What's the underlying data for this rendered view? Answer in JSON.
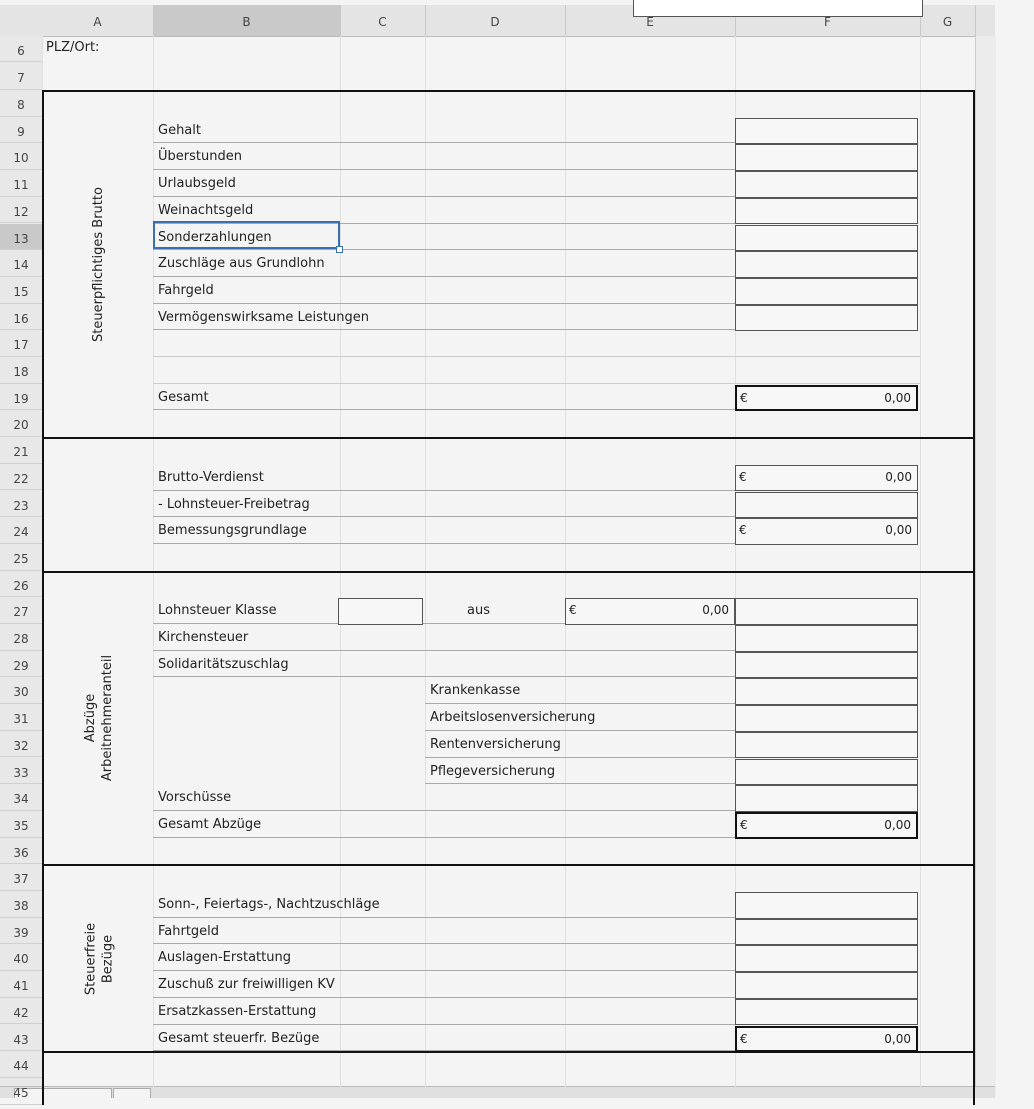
{
  "columns": [
    "A",
    "B",
    "C",
    "D",
    "E",
    "F",
    "G"
  ],
  "selected_column": "B",
  "selected_row": 13,
  "rows": [
    6,
    7,
    8,
    9,
    10,
    11,
    12,
    13,
    14,
    15,
    16,
    17,
    18,
    19,
    20,
    21,
    22,
    23,
    24,
    25,
    26,
    27,
    28,
    29,
    30,
    31,
    32,
    33,
    34,
    35,
    36,
    37,
    38,
    39,
    40,
    41,
    42,
    43,
    44,
    45
  ],
  "plz_label": "PLZ/Ort:",
  "sections": [
    {
      "side_label": [
        "Steuerpflichtiges Brutto"
      ],
      "from": 8,
      "to": 20
    },
    {
      "side_label": [],
      "from": 21,
      "to": 25
    },
    {
      "side_label": [
        "Abzüge",
        "Arbeitnehmeranteil"
      ],
      "from": 26,
      "to": 36
    },
    {
      "side_label": [
        "Steuerfreie",
        "Bezüge"
      ],
      "from": 37,
      "to": 43
    },
    {
      "side_label": [],
      "from": 44,
      "to": 45
    }
  ],
  "items": [
    {
      "row": 9,
      "col": "B",
      "label": "Gehalt",
      "box": true
    },
    {
      "row": 10,
      "col": "B",
      "label": "Überstunden",
      "box": true
    },
    {
      "row": 11,
      "col": "B",
      "label": "Urlaubsgeld",
      "box": true
    },
    {
      "row": 12,
      "col": "B",
      "label": "Weinachtsgeld",
      "box": true
    },
    {
      "row": 13,
      "col": "B",
      "label": "Sonderzahlungen",
      "box": true
    },
    {
      "row": 14,
      "col": "B",
      "label": "Zuschläge aus Grundlohn",
      "box": true
    },
    {
      "row": 15,
      "col": "B",
      "label": "Fahrgeld",
      "box": true
    },
    {
      "row": 16,
      "col": "B",
      "label": "Vermögenswirksame Leistungen",
      "box": true
    },
    {
      "row": 17,
      "col": "B",
      "label": "",
      "box": false
    },
    {
      "row": 18,
      "col": "B",
      "label": "",
      "box": false
    },
    {
      "row": 19,
      "col": "B",
      "label": "Gesamt",
      "box": true,
      "bold": true,
      "currency": "€",
      "value": "0,00"
    },
    {
      "row": 22,
      "col": "B",
      "label": "Brutto-Verdienst",
      "box": true,
      "currency": "€",
      "value": "0,00"
    },
    {
      "row": 23,
      "col": "B",
      "label": "- Lohnsteuer-Freibetrag",
      "box": true
    },
    {
      "row": 24,
      "col": "B",
      "label": "Bemessungsgrundlage",
      "box": true,
      "currency": "€",
      "value": "0,00"
    },
    {
      "row": 27,
      "col": "B",
      "label": "Lohnsteuer Klasse",
      "box": true,
      "mid": "aus",
      "e_currency": "€",
      "e_value": "0,00"
    },
    {
      "row": 28,
      "col": "B",
      "label": "Kirchensteuer",
      "box": true
    },
    {
      "row": 29,
      "col": "B",
      "label": "Solidaritätszuschlag",
      "box": true
    },
    {
      "row": 30,
      "col": "D",
      "label": "Krankenkasse",
      "box": true
    },
    {
      "row": 31,
      "col": "D",
      "label": "Arbeitslosenversicherung",
      "box": true
    },
    {
      "row": 32,
      "col": "D",
      "label": "Rentenversicherung",
      "box": true
    },
    {
      "row": 33,
      "col": "D",
      "label": "Pflegeversicherung",
      "box": true
    },
    {
      "row": 34,
      "col": "B",
      "label": "Vorschüsse",
      "box": true
    },
    {
      "row": 35,
      "col": "B",
      "label": "Gesamt Abzüge",
      "box": true,
      "bold": true,
      "currency": "€",
      "value": "0,00"
    },
    {
      "row": 38,
      "col": "B",
      "label": "Sonn-, Feiertags-, Nachtzuschläge",
      "box": true
    },
    {
      "row": 39,
      "col": "B",
      "label": "Fahrtgeld",
      "box": true
    },
    {
      "row": 40,
      "col": "B",
      "label": "Auslagen-Erstattung",
      "box": true
    },
    {
      "row": 41,
      "col": "B",
      "label": "Zuschuß zur freiwilligen KV",
      "box": true
    },
    {
      "row": 42,
      "col": "B",
      "label": "Ersatzkassen-Erstattung",
      "box": true
    },
    {
      "row": 43,
      "col": "B",
      "label": "Gesamt steuerfr. Bezüge",
      "box": true,
      "bold": true,
      "currency": "€",
      "value": "0,00"
    }
  ]
}
